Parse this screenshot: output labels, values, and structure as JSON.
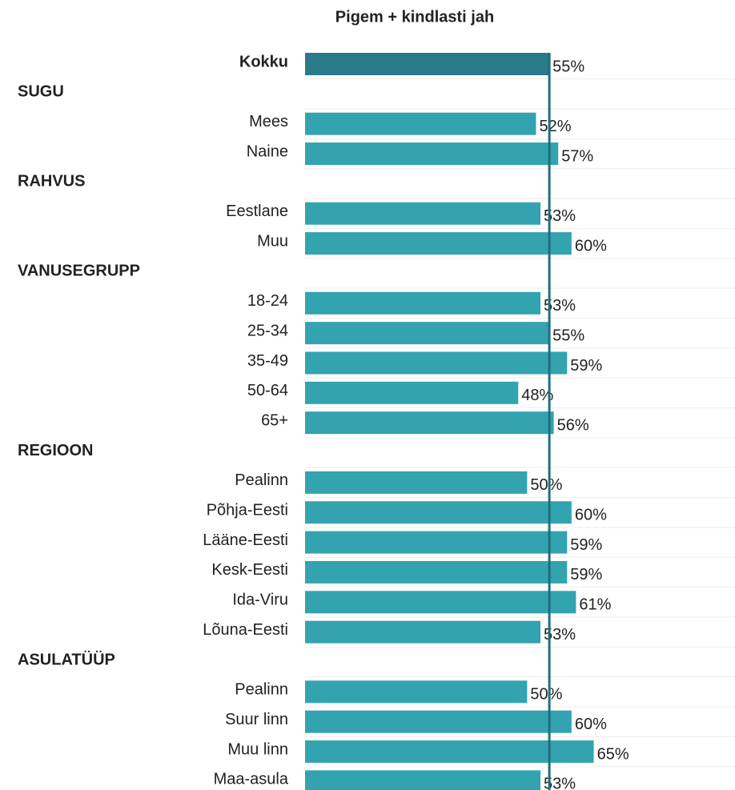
{
  "chart_data": {
    "type": "bar",
    "orientation": "horizontal",
    "title": "Pigem + kindlasti jah",
    "categories": [
      "Kokku",
      "SUGU",
      "Mees",
      "Naine",
      "RAHVUS",
      "Eestlane",
      "Muu",
      "VANUSEGRUPP",
      "18-24",
      "25-34",
      "35-49",
      "50-64",
      "65+",
      "REGIOON",
      "Pealinn",
      "Põhja-Eesti",
      "Lääne-Eesti",
      "Kesk-Eesti",
      "Ida-Viru",
      "Lõuna-Eesti",
      "ASULATÜÜP",
      "Pealinn",
      "Suur linn",
      "Muu linn",
      "Maa-asula"
    ],
    "values": [
      55,
      null,
      52,
      57,
      null,
      53,
      60,
      null,
      53,
      55,
      59,
      48,
      56,
      null,
      50,
      60,
      59,
      59,
      61,
      53,
      null,
      50,
      60,
      65,
      53
    ],
    "value_labels": [
      "55%",
      null,
      "52%",
      "57%",
      null,
      "53%",
      "60%",
      null,
      "53%",
      "55%",
      "59%",
      "48%",
      "56%",
      null,
      "50%",
      "60%",
      "59%",
      "59%",
      "61%",
      "53%",
      null,
      "50%",
      "60%",
      "65%",
      "53%"
    ],
    "colors": [
      "#2a7b8a",
      null,
      "#33a3b0",
      "#33a3b0",
      null,
      "#33a3b0",
      "#33a3b0",
      null,
      "#33a3b0",
      "#33a3b0",
      "#33a3b0",
      "#33a3b0",
      "#33a3b0",
      null,
      "#33a3b0",
      "#33a3b0",
      "#33a3b0",
      "#33a3b0",
      "#33a3b0",
      "#33a3b0",
      null,
      "#33a3b0",
      "#33a3b0",
      "#33a3b0",
      "#33a3b0"
    ],
    "reference_color": "#1f6f7e",
    "xlim": [
      0,
      95
    ]
  }
}
